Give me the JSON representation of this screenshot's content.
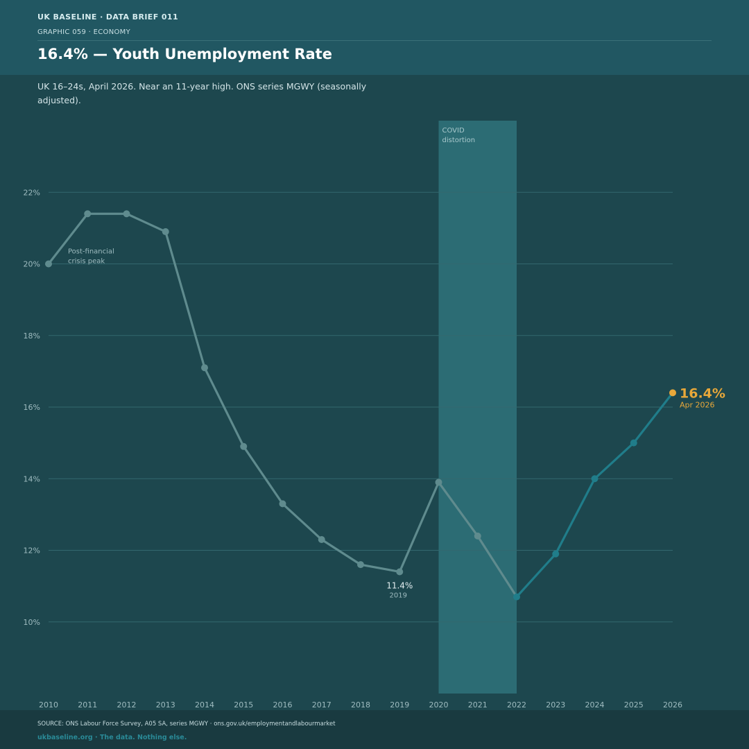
{
  "header": {
    "brand_line": "UK BASELINE  ·  DATA BRIEF 011",
    "sub_line": "GRAPHIC 059  ·  ECONOMY",
    "title": "16.4% — Youth Unemployment Rate",
    "subtitle": "UK 16–24s, April 2026. Near an 11-year high. ONS series MGWY (seasonally adjusted)."
  },
  "footer": {
    "source": "SOURCE: ONS Labour Force Survey, A05 SA, series MGWY · ons.gov.uk/employmentandlabourmarket",
    "site": "ukbaseline.org  ·  The data. Nothing else."
  },
  "colors": {
    "background": "#1d474e",
    "header_bg": "#215762",
    "historic_line": "#5f8b8e",
    "recent_line": "#207d8a",
    "highlight": "#e8a83a",
    "covid_band": "#2c6c74"
  },
  "chart_data": {
    "type": "line",
    "title": "16.4% — Youth Unemployment Rate",
    "xlabel": "",
    "ylabel": "",
    "x": [
      2010,
      2011,
      2012,
      2013,
      2014,
      2015,
      2016,
      2017,
      2018,
      2019,
      2020,
      2021,
      2022,
      2023,
      2024,
      2025,
      2026
    ],
    "values": [
      20.0,
      21.4,
      21.4,
      20.9,
      17.1,
      14.9,
      13.3,
      12.3,
      11.6,
      11.4,
      13.9,
      12.4,
      10.7,
      11.9,
      14.0,
      15.0,
      16.4
    ],
    "xlim": [
      2010,
      2026
    ],
    "ylim": [
      8,
      24
    ],
    "y_ticks": [
      10,
      12,
      14,
      16,
      18,
      20,
      22
    ],
    "y_tick_labels": [
      "10%",
      "12%",
      "14%",
      "16%",
      "18%",
      "20%",
      "22%"
    ],
    "x_tick_labels": [
      "2010",
      "2011",
      "2012",
      "2013",
      "2014",
      "2015",
      "2016",
      "2017",
      "2018",
      "2019",
      "2020",
      "2021",
      "2022",
      "2023",
      "2024",
      "2025",
      "2026"
    ],
    "grid": true,
    "highlight_from": 2022,
    "shaded_region": {
      "from": 2020,
      "to": 2022,
      "label_line1": "COVID",
      "label_line2": "distortion"
    },
    "annotations": [
      {
        "x": 2010,
        "y": 20.0,
        "line1": "Post-financial",
        "line2": "crisis peak"
      },
      {
        "x": 2019,
        "y": 11.4,
        "value_label": "11.4%",
        "sub_label": "2019"
      }
    ],
    "end_label": {
      "x": 2026,
      "y": 16.4,
      "value_label": "16.4%",
      "sub_label": "Apr 2026"
    }
  }
}
